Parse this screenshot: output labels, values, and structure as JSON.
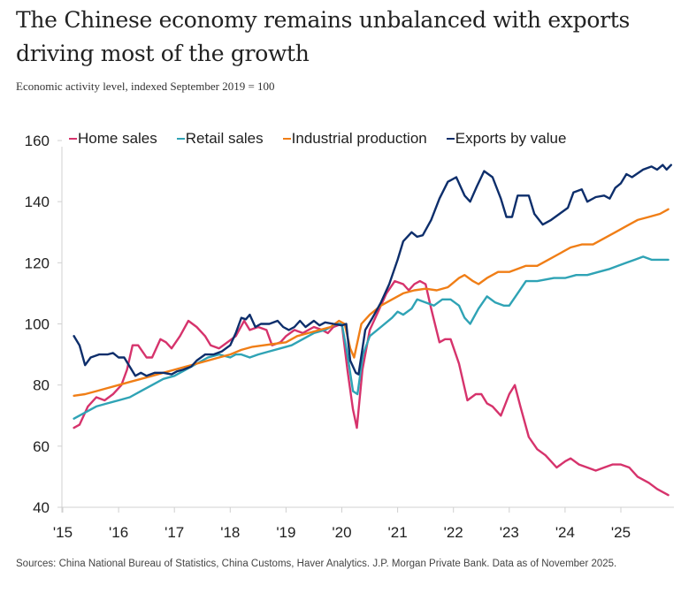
{
  "title": "The Chinese economy remains unbalanced with exports driving most of the growth",
  "subtitle": "Economic activity level, indexed September 2019 = 100",
  "source": "Sources: China National Bureau of Statistics, China Customs, Haver Analytics. J.P. Morgan Private Bank. Data as of November 2025.",
  "chart_data": {
    "type": "line",
    "title": "The Chinese economy remains unbalanced with exports driving most of the growth",
    "subtitle": "Economic activity level, indexed September 2019 = 100",
    "xlabel": "",
    "ylabel": "",
    "ylim": [
      40,
      160
    ],
    "xlim": [
      2015,
      2025.95
    ],
    "yticks": [
      40,
      60,
      80,
      100,
      120,
      140,
      160
    ],
    "xticks": [
      2015,
      2016,
      2017,
      2018,
      2019,
      2020,
      2021,
      2022,
      2023,
      2024,
      2025
    ],
    "xtick_labels": [
      "'15",
      "'16",
      "'17",
      "'18",
      "'19",
      "'20",
      "'21",
      "'22",
      "'23",
      "'24",
      "'25"
    ],
    "grid": false,
    "legend_position": "top",
    "series": [
      {
        "name": "Home sales",
        "color": "#d6336c",
        "points": [
          [
            2015.2,
            66
          ],
          [
            2015.3,
            67
          ],
          [
            2015.45,
            73
          ],
          [
            2015.6,
            76
          ],
          [
            2015.75,
            75
          ],
          [
            2015.9,
            77
          ],
          [
            2016.05,
            80
          ],
          [
            2016.15,
            85
          ],
          [
            2016.25,
            93
          ],
          [
            2016.35,
            93
          ],
          [
            2016.5,
            89
          ],
          [
            2016.6,
            89
          ],
          [
            2016.75,
            95
          ],
          [
            2016.85,
            94
          ],
          [
            2016.95,
            92
          ],
          [
            2017.1,
            96
          ],
          [
            2017.25,
            101
          ],
          [
            2017.4,
            99
          ],
          [
            2017.55,
            96
          ],
          [
            2017.65,
            93
          ],
          [
            2017.8,
            92
          ],
          [
            2017.95,
            94
          ],
          [
            2018.1,
            96
          ],
          [
            2018.25,
            101
          ],
          [
            2018.35,
            98
          ],
          [
            2018.5,
            99
          ],
          [
            2018.65,
            98
          ],
          [
            2018.75,
            93
          ],
          [
            2018.9,
            94
          ],
          [
            2019.0,
            96
          ],
          [
            2019.15,
            98
          ],
          [
            2019.3,
            97
          ],
          [
            2019.5,
            99
          ],
          [
            2019.65,
            98
          ],
          [
            2019.75,
            97
          ],
          [
            2019.85,
            99
          ],
          [
            2020.0,
            100
          ],
          [
            2020.1,
            85
          ],
          [
            2020.2,
            72
          ],
          [
            2020.27,
            66
          ],
          [
            2020.37,
            85
          ],
          [
            2020.5,
            98
          ],
          [
            2020.65,
            104
          ],
          [
            2020.8,
            110
          ],
          [
            2020.95,
            114
          ],
          [
            2021.1,
            113
          ],
          [
            2021.2,
            111
          ],
          [
            2021.3,
            113
          ],
          [
            2021.4,
            114
          ],
          [
            2021.5,
            113
          ],
          [
            2021.6,
            105
          ],
          [
            2021.75,
            94
          ],
          [
            2021.85,
            95
          ],
          [
            2021.95,
            95
          ],
          [
            2022.1,
            87
          ],
          [
            2022.25,
            75
          ],
          [
            2022.4,
            77
          ],
          [
            2022.5,
            77
          ],
          [
            2022.6,
            74
          ],
          [
            2022.7,
            73
          ],
          [
            2022.85,
            70
          ],
          [
            2023.0,
            77
          ],
          [
            2023.1,
            80
          ],
          [
            2023.2,
            73
          ],
          [
            2023.35,
            63
          ],
          [
            2023.5,
            59
          ],
          [
            2023.65,
            57
          ],
          [
            2023.75,
            55
          ],
          [
            2023.85,
            53
          ],
          [
            2024.0,
            55
          ],
          [
            2024.1,
            56
          ],
          [
            2024.25,
            54
          ],
          [
            2024.4,
            53
          ],
          [
            2024.55,
            52
          ],
          [
            2024.7,
            53
          ],
          [
            2024.85,
            54
          ],
          [
            2025.0,
            54
          ],
          [
            2025.15,
            53
          ],
          [
            2025.3,
            50
          ],
          [
            2025.5,
            48
          ],
          [
            2025.65,
            46
          ],
          [
            2025.85,
            44
          ]
        ]
      },
      {
        "name": "Retail sales",
        "color": "#2fa3b5",
        "points": [
          [
            2015.2,
            69
          ],
          [
            2015.4,
            71
          ],
          [
            2015.6,
            73
          ],
          [
            2015.8,
            74
          ],
          [
            2016.0,
            75
          ],
          [
            2016.2,
            76
          ],
          [
            2016.4,
            78
          ],
          [
            2016.6,
            80
          ],
          [
            2016.8,
            82
          ],
          [
            2017.0,
            83
          ],
          [
            2017.2,
            85
          ],
          [
            2017.4,
            87
          ],
          [
            2017.6,
            89
          ],
          [
            2017.8,
            90
          ],
          [
            2018.0,
            89
          ],
          [
            2018.1,
            90
          ],
          [
            2018.2,
            90
          ],
          [
            2018.35,
            89
          ],
          [
            2018.5,
            90
          ],
          [
            2018.7,
            91
          ],
          [
            2018.9,
            92
          ],
          [
            2019.1,
            93
          ],
          [
            2019.3,
            95
          ],
          [
            2019.5,
            97
          ],
          [
            2019.7,
            98
          ],
          [
            2019.9,
            100
          ],
          [
            2020.0,
            100
          ],
          [
            2020.1,
            90
          ],
          [
            2020.2,
            78
          ],
          [
            2020.28,
            77
          ],
          [
            2020.38,
            90
          ],
          [
            2020.5,
            96
          ],
          [
            2020.7,
            99
          ],
          [
            2020.9,
            102
          ],
          [
            2021.0,
            104
          ],
          [
            2021.1,
            103
          ],
          [
            2021.25,
            105
          ],
          [
            2021.35,
            108
          ],
          [
            2021.5,
            107
          ],
          [
            2021.65,
            106
          ],
          [
            2021.8,
            108
          ],
          [
            2021.95,
            108
          ],
          [
            2022.1,
            106
          ],
          [
            2022.2,
            102
          ],
          [
            2022.3,
            100
          ],
          [
            2022.45,
            105
          ],
          [
            2022.6,
            109
          ],
          [
            2022.75,
            107
          ],
          [
            2022.9,
            106
          ],
          [
            2023.0,
            106
          ],
          [
            2023.15,
            110
          ],
          [
            2023.3,
            114
          ],
          [
            2023.5,
            114
          ],
          [
            2023.8,
            115
          ],
          [
            2024.0,
            115
          ],
          [
            2024.2,
            116
          ],
          [
            2024.4,
            116
          ],
          [
            2024.6,
            117
          ],
          [
            2024.8,
            118
          ],
          [
            2024.95,
            119
          ],
          [
            2025.1,
            120
          ],
          [
            2025.25,
            121
          ],
          [
            2025.4,
            122
          ],
          [
            2025.55,
            121
          ],
          [
            2025.7,
            121
          ],
          [
            2025.85,
            121
          ]
        ]
      },
      {
        "name": "Industrial production",
        "color": "#f07e16",
        "points": [
          [
            2015.2,
            76.5
          ],
          [
            2015.4,
            77
          ],
          [
            2015.6,
            78
          ],
          [
            2015.8,
            79
          ],
          [
            2016.0,
            80
          ],
          [
            2016.2,
            81
          ],
          [
            2016.4,
            82
          ],
          [
            2016.6,
            83
          ],
          [
            2016.8,
            84
          ],
          [
            2017.0,
            85
          ],
          [
            2017.2,
            86
          ],
          [
            2017.4,
            87
          ],
          [
            2017.6,
            88
          ],
          [
            2017.8,
            89
          ],
          [
            2018.0,
            90
          ],
          [
            2018.2,
            91.5
          ],
          [
            2018.4,
            92.5
          ],
          [
            2018.6,
            93
          ],
          [
            2018.8,
            93.5
          ],
          [
            2019.0,
            94
          ],
          [
            2019.2,
            96
          ],
          [
            2019.4,
            97
          ],
          [
            2019.6,
            98
          ],
          [
            2019.8,
            99
          ],
          [
            2019.95,
            101
          ],
          [
            2020.05,
            100
          ],
          [
            2020.15,
            92
          ],
          [
            2020.22,
            89
          ],
          [
            2020.35,
            100
          ],
          [
            2020.5,
            103
          ],
          [
            2020.7,
            106
          ],
          [
            2020.9,
            108
          ],
          [
            2021.1,
            110
          ],
          [
            2021.3,
            111
          ],
          [
            2021.5,
            111.5
          ],
          [
            2021.7,
            111
          ],
          [
            2021.9,
            112
          ],
          [
            2022.1,
            115
          ],
          [
            2022.2,
            116
          ],
          [
            2022.35,
            114
          ],
          [
            2022.45,
            113
          ],
          [
            2022.6,
            115
          ],
          [
            2022.8,
            117
          ],
          [
            2023.0,
            117
          ],
          [
            2023.15,
            118
          ],
          [
            2023.3,
            119
          ],
          [
            2023.5,
            119
          ],
          [
            2023.7,
            121
          ],
          [
            2023.9,
            123
          ],
          [
            2024.1,
            125
          ],
          [
            2024.3,
            126
          ],
          [
            2024.5,
            126
          ],
          [
            2024.7,
            128
          ],
          [
            2024.9,
            130
          ],
          [
            2025.1,
            132
          ],
          [
            2025.3,
            134
          ],
          [
            2025.5,
            135
          ],
          [
            2025.7,
            136
          ],
          [
            2025.85,
            137.5
          ]
        ]
      },
      {
        "name": "Exports by value",
        "color": "#0d2e6b",
        "points": [
          [
            2015.2,
            96
          ],
          [
            2015.3,
            93
          ],
          [
            2015.4,
            86.5
          ],
          [
            2015.5,
            89
          ],
          [
            2015.65,
            90
          ],
          [
            2015.8,
            90
          ],
          [
            2015.9,
            90.5
          ],
          [
            2016.0,
            89
          ],
          [
            2016.1,
            89
          ],
          [
            2016.2,
            86
          ],
          [
            2016.3,
            83
          ],
          [
            2016.4,
            84
          ],
          [
            2016.5,
            83
          ],
          [
            2016.65,
            84
          ],
          [
            2016.8,
            84
          ],
          [
            2016.95,
            83.5
          ],
          [
            2017.05,
            84.5
          ],
          [
            2017.15,
            85
          ],
          [
            2017.3,
            86
          ],
          [
            2017.4,
            88
          ],
          [
            2017.55,
            90
          ],
          [
            2017.7,
            90
          ],
          [
            2017.85,
            91
          ],
          [
            2018.0,
            93
          ],
          [
            2018.1,
            97
          ],
          [
            2018.2,
            102
          ],
          [
            2018.28,
            101.5
          ],
          [
            2018.35,
            103
          ],
          [
            2018.45,
            99
          ],
          [
            2018.55,
            100
          ],
          [
            2018.7,
            100
          ],
          [
            2018.85,
            101
          ],
          [
            2018.95,
            99
          ],
          [
            2019.05,
            98
          ],
          [
            2019.15,
            99
          ],
          [
            2019.25,
            101
          ],
          [
            2019.35,
            99
          ],
          [
            2019.5,
            101
          ],
          [
            2019.6,
            99.5
          ],
          [
            2019.7,
            100.5
          ],
          [
            2019.85,
            100
          ],
          [
            2020.0,
            99.5
          ],
          [
            2020.08,
            100
          ],
          [
            2020.15,
            88
          ],
          [
            2020.25,
            84
          ],
          [
            2020.3,
            83.5
          ],
          [
            2020.42,
            98
          ],
          [
            2020.55,
            102
          ],
          [
            2020.7,
            107
          ],
          [
            2020.85,
            113
          ],
          [
            2021.0,
            121
          ],
          [
            2021.1,
            127
          ],
          [
            2021.25,
            130
          ],
          [
            2021.35,
            128.5
          ],
          [
            2021.45,
            129
          ],
          [
            2021.6,
            134
          ],
          [
            2021.75,
            141
          ],
          [
            2021.9,
            146.5
          ],
          [
            2022.05,
            148
          ],
          [
            2022.2,
            142
          ],
          [
            2022.3,
            140
          ],
          [
            2022.42,
            145
          ],
          [
            2022.55,
            150
          ],
          [
            2022.7,
            148
          ],
          [
            2022.85,
            141
          ],
          [
            2022.95,
            135
          ],
          [
            2023.05,
            135
          ],
          [
            2023.15,
            142
          ],
          [
            2023.25,
            142
          ],
          [
            2023.35,
            142
          ],
          [
            2023.45,
            136
          ],
          [
            2023.6,
            132.5
          ],
          [
            2023.75,
            134
          ],
          [
            2023.9,
            136
          ],
          [
            2024.05,
            138
          ],
          [
            2024.15,
            143
          ],
          [
            2024.3,
            144
          ],
          [
            2024.4,
            140
          ],
          [
            2024.55,
            141.5
          ],
          [
            2024.7,
            142
          ],
          [
            2024.8,
            141
          ],
          [
            2024.9,
            144.5
          ],
          [
            2025.0,
            146
          ],
          [
            2025.1,
            149
          ],
          [
            2025.2,
            148
          ],
          [
            2025.4,
            150.5
          ],
          [
            2025.55,
            151.5
          ],
          [
            2025.65,
            150.5
          ],
          [
            2025.75,
            152
          ],
          [
            2025.82,
            150.5
          ],
          [
            2025.9,
            152
          ]
        ]
      }
    ]
  }
}
